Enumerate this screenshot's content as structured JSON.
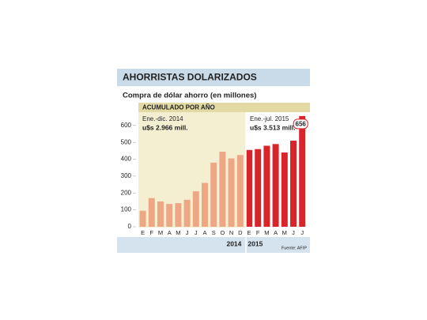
{
  "chart_data": {
    "type": "bar",
    "title": "AHORRISTAS DOLARIZADOS",
    "subtitle": "Compra de dólar ahorro (en millones)",
    "banner": "ACUMULADO POR AÑO",
    "annotations": [
      {
        "text": "Ene.-dic. 2014",
        "value_text": "u$s 2.966 mill."
      },
      {
        "text": "Ene.-jul. 2015",
        "value_text": "u$s 3.513 mill."
      }
    ],
    "source": "Fuente: AFIP",
    "categories": [
      "E",
      "F",
      "M",
      "A",
      "M",
      "J",
      "J",
      "A",
      "S",
      "O",
      "N",
      "D",
      "E",
      "F",
      "M",
      "A",
      "M",
      "J",
      "J"
    ],
    "series": [
      {
        "name": "2014",
        "color": "#eea784",
        "values": [
          95,
          170,
          150,
          135,
          140,
          160,
          210,
          260,
          380,
          445,
          405,
          425,
          null,
          null,
          null,
          null,
          null,
          null,
          null
        ]
      },
      {
        "name": "2015",
        "color": "#d9252a",
        "values": [
          null,
          null,
          null,
          null,
          null,
          null,
          null,
          null,
          null,
          null,
          null,
          null,
          455,
          460,
          480,
          490,
          440,
          510,
          656
        ],
        "value_labels": [
          null,
          null,
          null,
          null,
          null,
          null,
          null,
          null,
          null,
          null,
          null,
          null,
          null,
          null,
          null,
          null,
          null,
          null,
          "656"
        ]
      }
    ],
    "ylim": [
      0,
      660
    ],
    "yticks": [
      0,
      100,
      200,
      300,
      400,
      500,
      600
    ]
  }
}
